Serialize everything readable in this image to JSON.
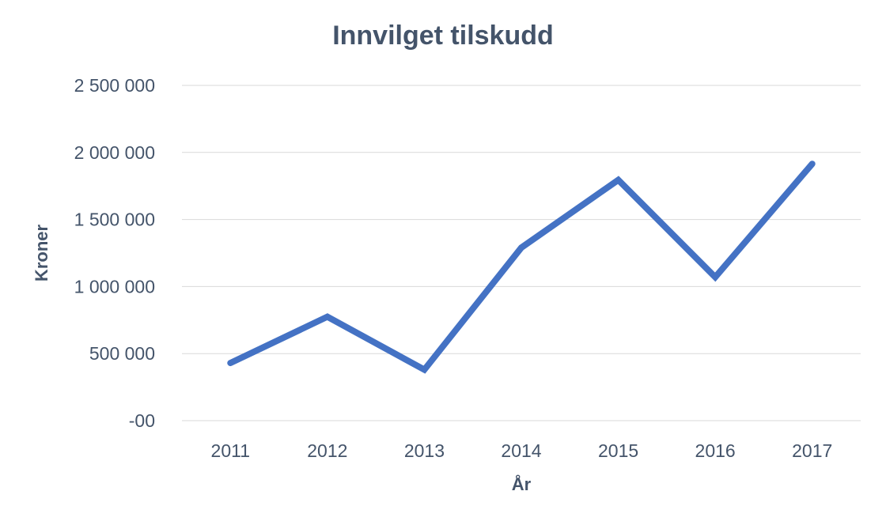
{
  "chart_data": {
    "type": "line",
    "title": "Innvilget tilskudd",
    "xlabel": "År",
    "ylabel": "Kroner",
    "categories": [
      "2011",
      "2012",
      "2013",
      "2014",
      "2015",
      "2016",
      "2017"
    ],
    "series": [
      {
        "values": [
          430000,
          775000,
          380000,
          1290000,
          1795000,
          1070000,
          1915000
        ]
      }
    ],
    "ylim": [
      0,
      2500000
    ],
    "yticks": [
      0,
      500000,
      1000000,
      1500000,
      2000000,
      2500000
    ],
    "ytick_labels": [
      "-00",
      "500 000",
      "1 000 000",
      "1 500 000",
      "2 000 000",
      "2 500 000"
    ],
    "grid": true,
    "legend": "none",
    "line_color": "#4472c4",
    "text_color": "#44546a"
  }
}
